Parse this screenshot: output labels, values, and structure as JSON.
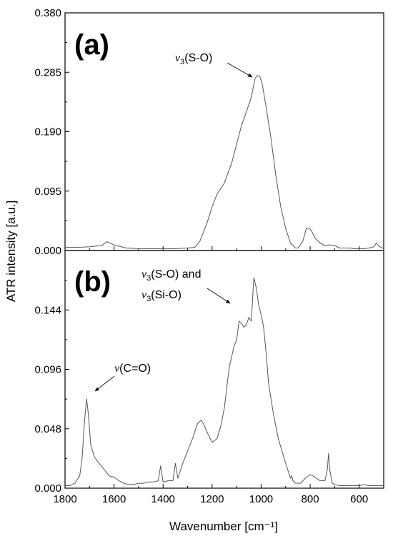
{
  "chart_data": [
    {
      "type": "line",
      "panel_label": "(a)",
      "xlabel": "Wavenumber [cm⁻¹]",
      "ylabel": "ATR intensity [a.u.]",
      "xlim": [
        1800,
        500
      ],
      "x_reversed": true,
      "ylim": [
        0,
        0.38
      ],
      "x_ticks": [
        "1800",
        "1600",
        "1400",
        "1200",
        "1000",
        "800",
        "600"
      ],
      "y_ticks": [
        "0.000",
        "0.095",
        "0.190",
        "0.285",
        "0.380"
      ],
      "annotations": [
        {
          "prefix": "ν",
          "sub": "3",
          "suffix": "(S-O)",
          "text": "ν3(S-O)",
          "points_to": {
            "x": 1015,
            "y": 0.278
          }
        }
      ],
      "series": [
        {
          "color": "#555555",
          "x": [
            1800,
            1750,
            1700,
            1650,
            1630,
            1600,
            1550,
            1500,
            1450,
            1400,
            1350,
            1300,
            1270,
            1250,
            1220,
            1200,
            1180,
            1150,
            1120,
            1100,
            1080,
            1060,
            1040,
            1025,
            1015,
            1005,
            995,
            980,
            960,
            940,
            920,
            900,
            880,
            860,
            850,
            830,
            815,
            805,
            795,
            780,
            760,
            740,
            720,
            700,
            680,
            660,
            640,
            620,
            600,
            580,
            560,
            540,
            530,
            520,
            500
          ],
          "y": [
            0.005,
            0.005,
            0.006,
            0.008,
            0.014,
            0.009,
            0.004,
            0.003,
            0.003,
            0.003,
            0.003,
            0.004,
            0.005,
            0.015,
            0.045,
            0.07,
            0.09,
            0.108,
            0.14,
            0.17,
            0.2,
            0.222,
            0.245,
            0.275,
            0.28,
            0.278,
            0.265,
            0.23,
            0.18,
            0.12,
            0.07,
            0.035,
            0.012,
            0.004,
            0.004,
            0.015,
            0.036,
            0.036,
            0.032,
            0.02,
            0.012,
            0.008,
            0.009,
            0.008,
            0.004,
            0.004,
            0.004,
            0.003,
            0.003,
            0.003,
            0.004,
            0.006,
            0.012,
            0.007,
            0.003
          ]
        }
      ]
    },
    {
      "type": "line",
      "panel_label": "(b)",
      "xlim": [
        1800,
        500
      ],
      "x_reversed": true,
      "ylim": [
        0,
        0.192
      ],
      "y_ticks": [
        "0.000",
        "0.048",
        "0.096",
        "0.144"
      ],
      "annotations": [
        {
          "prefix": "ν",
          "sub": "3",
          "suffix": "(S-O) and",
          "text": "ν3(S-O) and",
          "points_to": null
        },
        {
          "prefix": "ν",
          "sub": "3",
          "suffix": "(Si-O)",
          "text": "ν3(Si-O)",
          "points_to": {
            "x": 1040,
            "y": 0.146
          }
        },
        {
          "prefix": "ν",
          "sub": "",
          "suffix": "(C=O)",
          "text": "ν(C=O)",
          "points_to": {
            "x": 1712,
            "y": 0.074
          }
        }
      ],
      "series": [
        {
          "color": "#555555",
          "x": [
            1800,
            1780,
            1760,
            1740,
            1730,
            1720,
            1712,
            1705,
            1695,
            1680,
            1660,
            1640,
            1620,
            1600,
            1580,
            1560,
            1540,
            1520,
            1500,
            1480,
            1460,
            1440,
            1420,
            1410,
            1400,
            1380,
            1360,
            1350,
            1340,
            1320,
            1300,
            1280,
            1260,
            1245,
            1235,
            1220,
            1200,
            1180,
            1165,
            1150,
            1130,
            1110,
            1100,
            1090,
            1080,
            1070,
            1060,
            1050,
            1040,
            1030,
            1020,
            1015,
            1010,
            1000,
            990,
            980,
            970,
            950,
            930,
            900,
            880,
            875,
            870,
            860,
            840,
            820,
            800,
            780,
            760,
            740,
            730,
            725,
            720,
            710,
            700,
            680,
            660,
            640,
            620,
            600,
            580,
            560,
            540,
            520,
            500
          ],
          "y": [
            0.002,
            0.002,
            0.004,
            0.01,
            0.025,
            0.055,
            0.072,
            0.06,
            0.035,
            0.025,
            0.02,
            0.015,
            0.01,
            0.009,
            0.006,
            0.004,
            0.003,
            0.003,
            0.004,
            0.004,
            0.005,
            0.005,
            0.006,
            0.018,
            0.005,
            0.006,
            0.006,
            0.02,
            0.008,
            0.02,
            0.03,
            0.04,
            0.052,
            0.055,
            0.052,
            0.045,
            0.037,
            0.04,
            0.05,
            0.065,
            0.098,
            0.115,
            0.12,
            0.135,
            0.133,
            0.13,
            0.132,
            0.138,
            0.135,
            0.17,
            0.162,
            0.155,
            0.148,
            0.14,
            0.13,
            0.11,
            0.085,
            0.06,
            0.04,
            0.02,
            0.008,
            0.01,
            0.006,
            0.004,
            0.004,
            0.008,
            0.011,
            0.009,
            0.006,
            0.006,
            0.015,
            0.028,
            0.015,
            0.004,
            0.003,
            0.002,
            0.002,
            0.002,
            0.002,
            0.002,
            0.003,
            0.002,
            0.002,
            0.002,
            0.002
          ]
        }
      ]
    }
  ]
}
